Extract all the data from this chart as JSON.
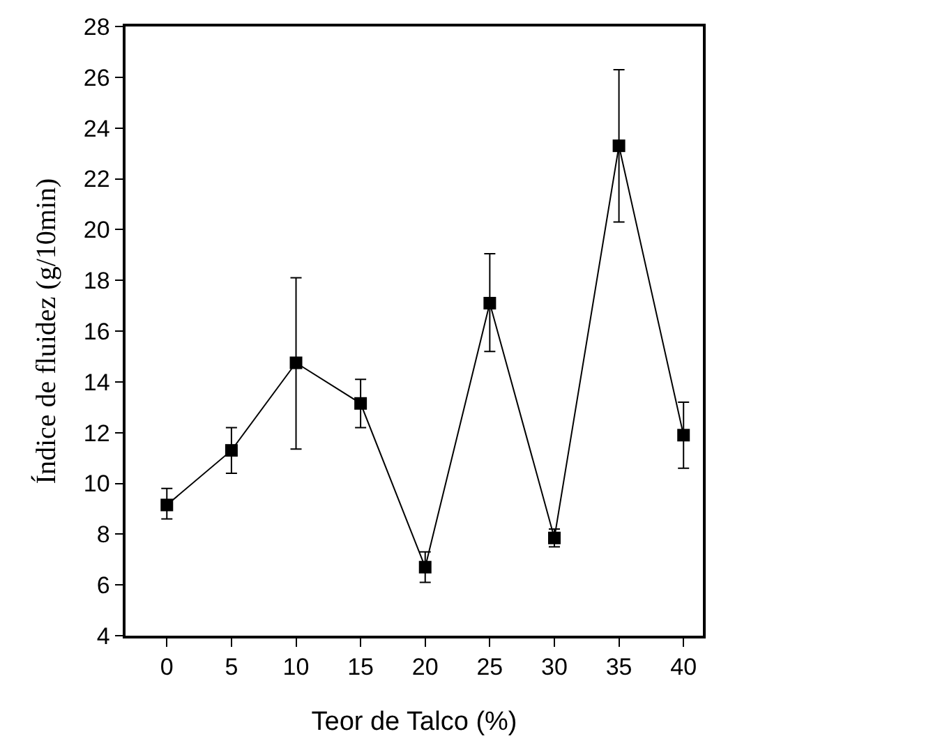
{
  "chart_data": {
    "type": "line",
    "xlabel": "Teor de Talco (%)",
    "ylabel": "Índice de fluidez (g/10min)",
    "x": [
      0,
      5,
      10,
      15,
      20,
      25,
      30,
      35,
      40
    ],
    "series": [
      {
        "color": "#000000",
        "values": [
          9.15,
          11.3,
          14.75,
          13.15,
          6.7,
          17.1,
          7.85,
          23.3,
          11.9
        ],
        "errors": [
          [
            8.6,
            9.8
          ],
          [
            10.4,
            12.2
          ],
          [
            11.35,
            18.1
          ],
          [
            12.2,
            14.1
          ],
          [
            6.1,
            7.3
          ],
          [
            15.2,
            19.05
          ],
          [
            7.5,
            8.2
          ],
          [
            20.3,
            26.3
          ],
          [
            10.6,
            13.2
          ]
        ]
      }
    ],
    "xlim": [
      -3.2,
      41.5
    ],
    "xticks": [
      0,
      5,
      10,
      15,
      20,
      25,
      30,
      35,
      40
    ],
    "ylim": [
      4,
      28
    ],
    "yticks": [
      4,
      6,
      8,
      10,
      12,
      14,
      16,
      18,
      20,
      22,
      24,
      26,
      28
    ],
    "marker": "square",
    "line_style": "solid",
    "grid": false,
    "legend": false
  }
}
